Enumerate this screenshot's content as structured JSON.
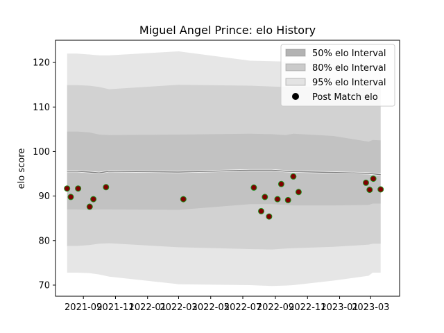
{
  "chart_data": {
    "type": "line",
    "title": "Miguel Angel Prince: elo History",
    "xlabel": "",
    "ylabel": "elo score",
    "xlim": [
      "2021-07-10",
      "2023-04-25"
    ],
    "ylim": [
      67.5,
      125
    ],
    "xticks": [
      "2021-09",
      "2021-11",
      "2022-01",
      "2022-03",
      "2022-05",
      "2022-07",
      "2022-09",
      "2022-11",
      "2023-01",
      "2023-03"
    ],
    "yticks": [
      70,
      80,
      90,
      100,
      110,
      120
    ],
    "grid": false,
    "legend_position": "top-right",
    "legend": [
      {
        "label": "50% elo Interval",
        "color": "#b3b3b3"
      },
      {
        "label": "80% elo Interval",
        "color": "#cccccc"
      },
      {
        "label": "95% elo Interval",
        "color": "#e5e5e5"
      },
      {
        "label": "Post Match elo",
        "color": "#000000"
      }
    ],
    "band_x": [
      "2021-08-01",
      "2021-08-20",
      "2021-09-12",
      "2021-10-01",
      "2021-10-20",
      "2022-03-01",
      "2022-07-15",
      "2022-08-25",
      "2022-09-20",
      "2022-10-05",
      "2022-12-20",
      "2023-02-25",
      "2023-03-05",
      "2023-03-20"
    ],
    "mean": [
      95.6,
      95.6,
      95.4,
      95.2,
      95.6,
      95.4,
      95.8,
      95.8,
      95.6,
      95.5,
      95.3,
      95.1,
      95.0,
      94.8
    ],
    "band50_upper": [
      104.5,
      104.5,
      104.3,
      103.8,
      103.7,
      103.8,
      104.0,
      103.9,
      103.7,
      104.0,
      103.5,
      102.2,
      102.6,
      102.5
    ],
    "band50_lower": [
      87.0,
      87.0,
      86.9,
      87.0,
      87.0,
      86.9,
      88.2,
      88.2,
      88.0,
      87.9,
      87.9,
      88.0,
      88.3,
      88.3
    ],
    "band80_upper": [
      114.9,
      114.9,
      114.8,
      114.5,
      114.0,
      115.0,
      114.8,
      114.6,
      114.5,
      114.6,
      114.5,
      114.2,
      114.4,
      114.5
    ],
    "band80_lower": [
      78.8,
      78.8,
      79.0,
      79.3,
      79.4,
      78.5,
      78.1,
      78.0,
      78.2,
      78.3,
      78.6,
      79.1,
      79.3,
      79.3
    ],
    "band95_upper": [
      122.0,
      122.0,
      121.8,
      121.6,
      121.6,
      122.5,
      120.4,
      120.3,
      120.2,
      120.3,
      121.0,
      121.3,
      121.1,
      120.8
    ],
    "band95_lower": [
      72.8,
      72.8,
      72.7,
      72.4,
      71.9,
      70.2,
      70.0,
      69.8,
      69.9,
      70.0,
      71.0,
      72.1,
      72.8,
      72.8
    ],
    "series": [
      {
        "name": "Post Match elo",
        "points": [
          {
            "x": "2021-08-01",
            "y": 91.7
          },
          {
            "x": "2021-08-08",
            "y": 89.8
          },
          {
            "x": "2021-08-22",
            "y": 91.7
          },
          {
            "x": "2021-09-13",
            "y": 87.6
          },
          {
            "x": "2021-09-20",
            "y": 89.3
          },
          {
            "x": "2021-10-14",
            "y": 92.0
          },
          {
            "x": "2022-03-10",
            "y": 89.3
          },
          {
            "x": "2022-07-22",
            "y": 91.9
          },
          {
            "x": "2022-08-05",
            "y": 86.6
          },
          {
            "x": "2022-08-12",
            "y": 89.8
          },
          {
            "x": "2022-08-20",
            "y": 85.4
          },
          {
            "x": "2022-09-05",
            "y": 89.3
          },
          {
            "x": "2022-09-12",
            "y": 92.7
          },
          {
            "x": "2022-09-25",
            "y": 89.1
          },
          {
            "x": "2022-10-05",
            "y": 94.4
          },
          {
            "x": "2022-10-15",
            "y": 90.9
          },
          {
            "x": "2023-02-20",
            "y": 93.0
          },
          {
            "x": "2023-02-27",
            "y": 91.4
          },
          {
            "x": "2023-03-06",
            "y": 93.9
          },
          {
            "x": "2023-03-20",
            "y": 91.5
          }
        ]
      }
    ]
  }
}
